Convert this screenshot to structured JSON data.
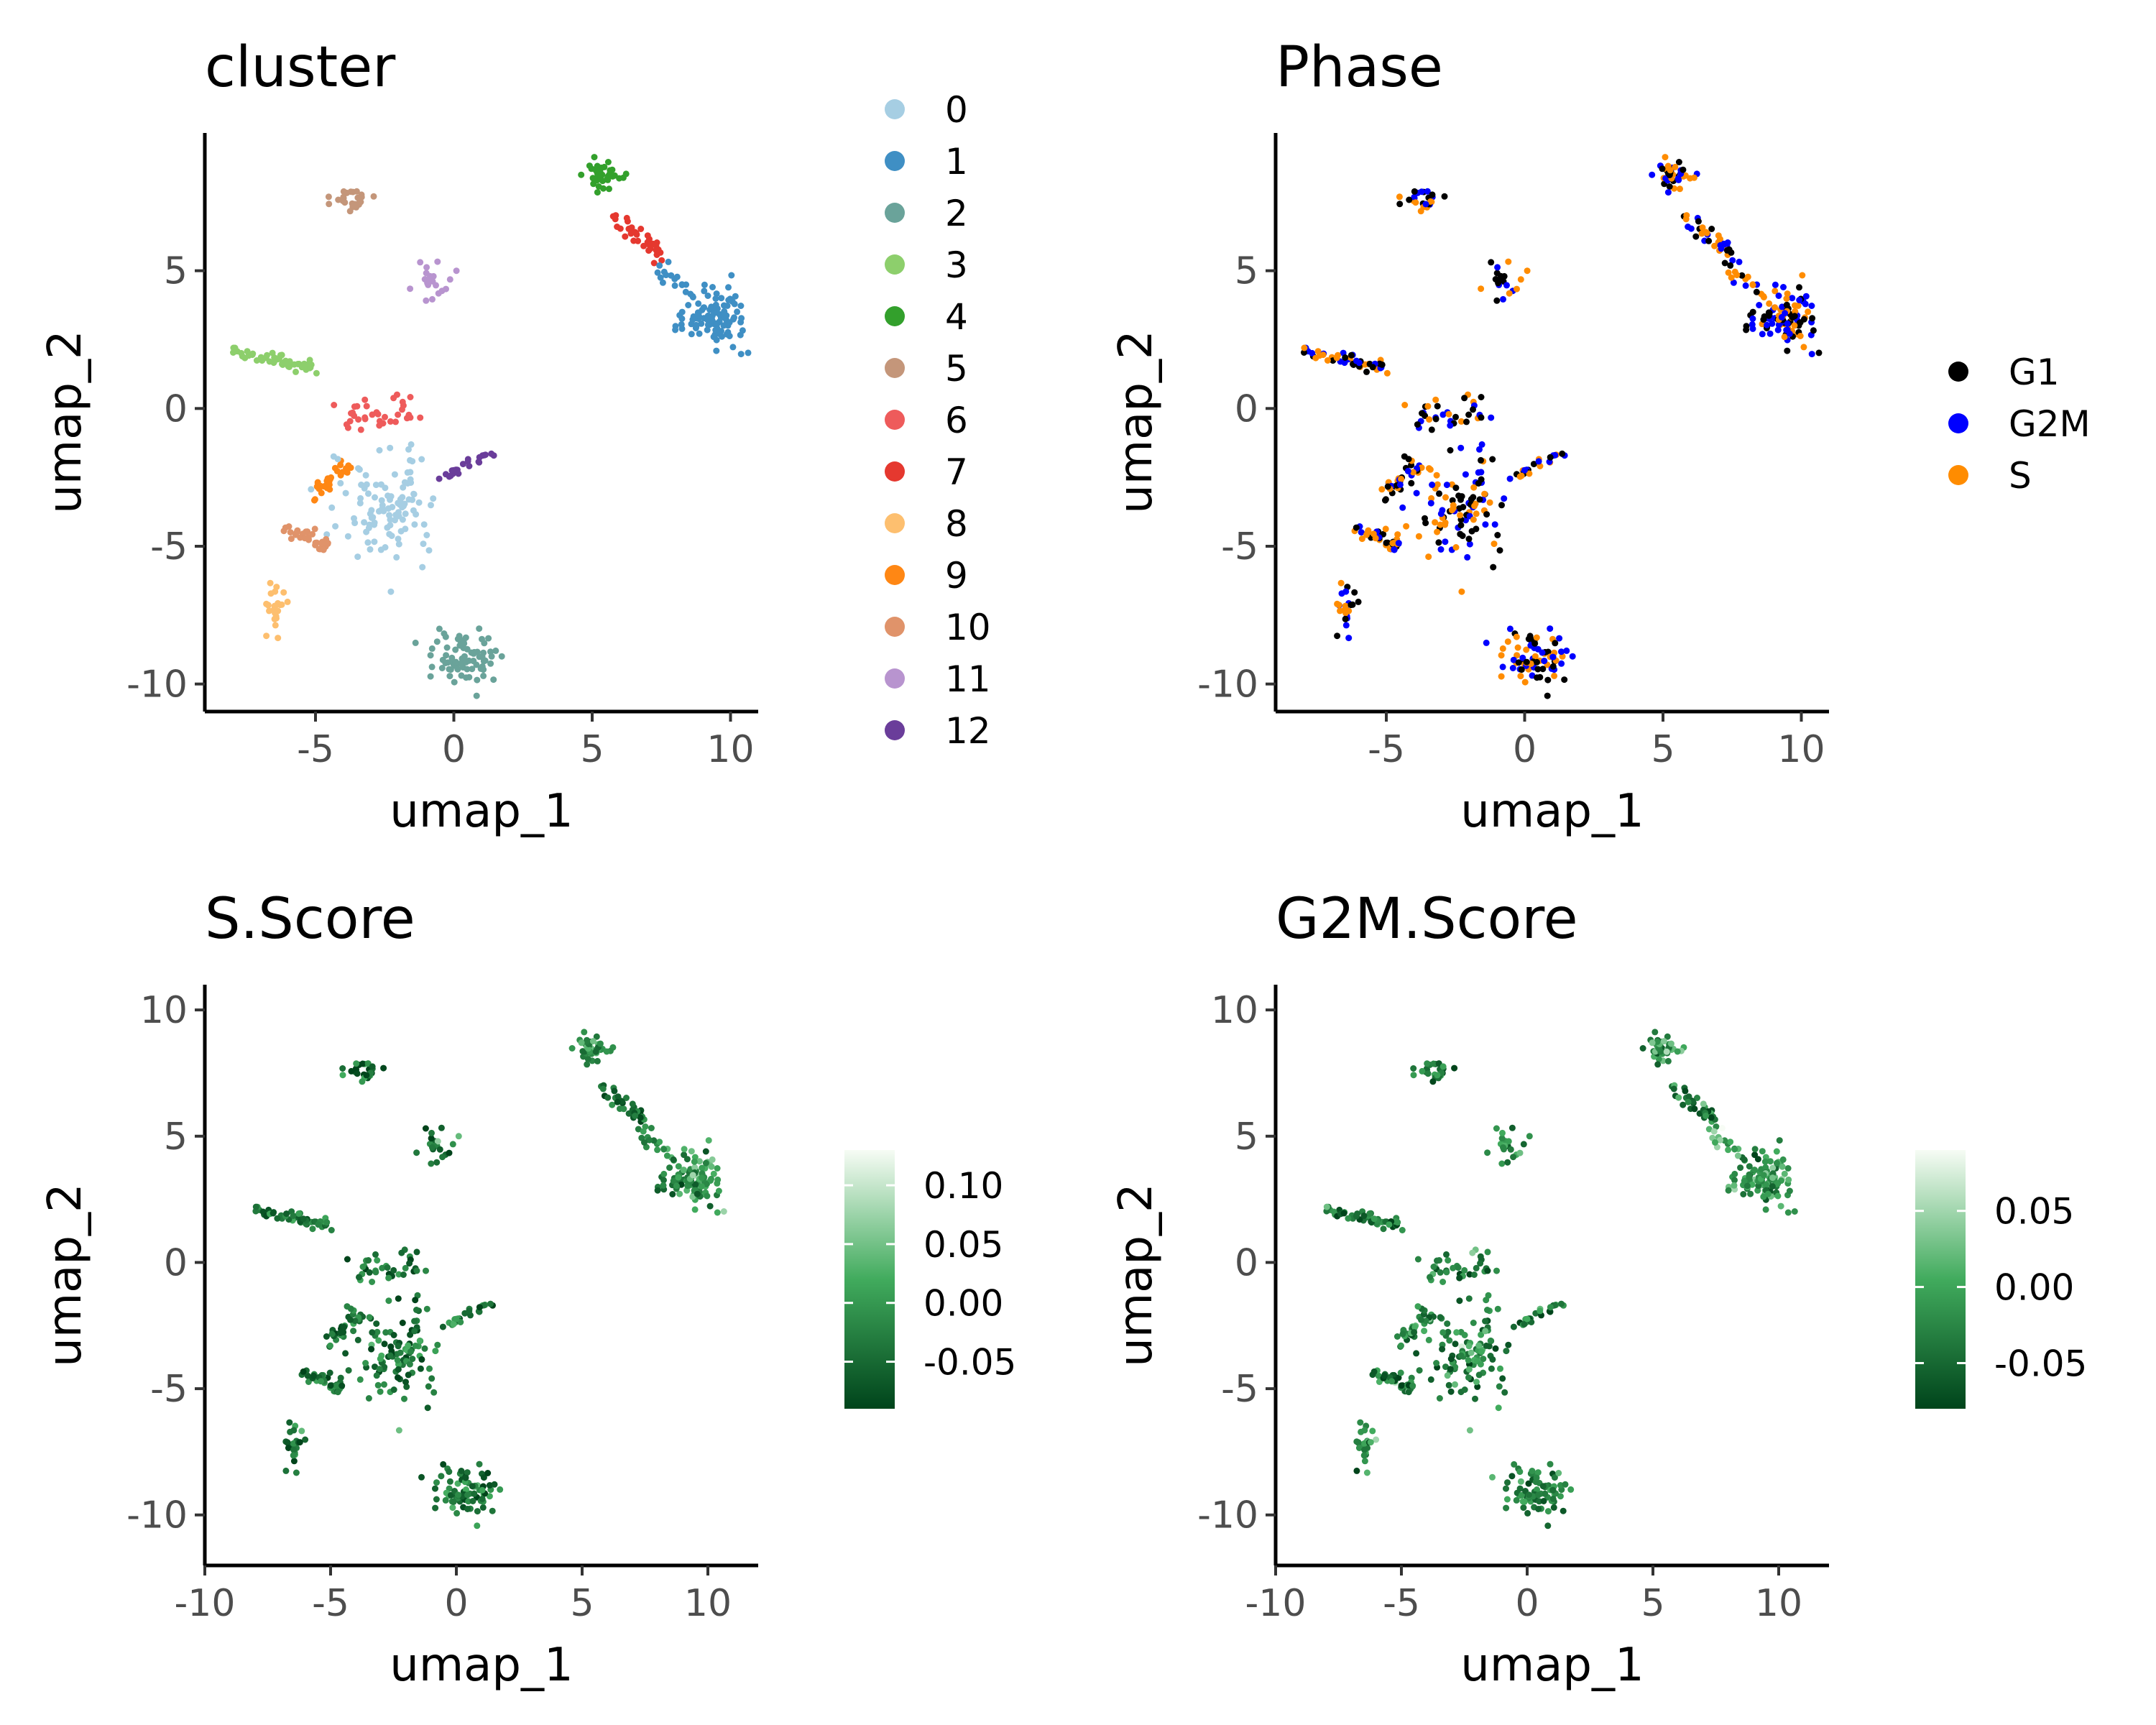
{
  "chart_data": [
    {
      "title": "cluster",
      "type": "scatter",
      "xlabel": "umap_1",
      "ylabel": "umap_2",
      "xlim": [
        -9,
        11
      ],
      "ylim": [
        -11,
        10
      ],
      "xticks": [
        -5,
        0,
        5,
        10
      ],
      "yticks": [
        -10,
        -5,
        0,
        5
      ],
      "grid": false,
      "legend_position": "right",
      "color_by": "cluster",
      "legend": [
        {
          "label": "0",
          "color": "#a6cee3"
        },
        {
          "label": "1",
          "color": "#3f8fc4"
        },
        {
          "label": "2",
          "color": "#6aa39a"
        },
        {
          "label": "3",
          "color": "#8dcf6c"
        },
        {
          "label": "4",
          "color": "#33a02c"
        },
        {
          "label": "5",
          "color": "#c4967a"
        },
        {
          "label": "6",
          "color": "#ee5b5b"
        },
        {
          "label": "7",
          "color": "#e5382f"
        },
        {
          "label": "8",
          "color": "#fdbf6f"
        },
        {
          "label": "9",
          "color": "#ff8714"
        },
        {
          "label": "10",
          "color": "#e0936a"
        },
        {
          "label": "11",
          "color": "#b894cf"
        },
        {
          "label": "12",
          "color": "#6a3d9a"
        }
      ]
    },
    {
      "title": "Phase",
      "type": "scatter",
      "xlabel": "umap_1",
      "ylabel": "umap_2",
      "xlim": [
        -9,
        11
      ],
      "ylim": [
        -11,
        10
      ],
      "xticks": [
        -5,
        0,
        5,
        10
      ],
      "yticks": [
        -10,
        -5,
        0,
        5
      ],
      "grid": false,
      "legend_position": "right",
      "color_by": "phase",
      "legend": [
        {
          "label": "G1",
          "color": "#000000"
        },
        {
          "label": "G2M",
          "color": "#0000ff"
        },
        {
          "label": "S",
          "color": "#ff8c00"
        }
      ]
    },
    {
      "title": "S.Score",
      "type": "scatter",
      "xlabel": "umap_1",
      "ylabel": "umap_2",
      "xlim": [
        -10,
        12
      ],
      "ylim": [
        -12,
        11
      ],
      "xticks": [
        -10,
        -5,
        0,
        5,
        10
      ],
      "yticks": [
        -10,
        -5,
        0,
        5,
        10
      ],
      "grid": false,
      "legend_position": "right",
      "color_by": "s_score",
      "colorbar": {
        "min": -0.09,
        "max": 0.13,
        "ticks": [
          0.1,
          0.05,
          0.0,
          -0.05
        ],
        "tick_labels": [
          "0.10",
          "0.05",
          "0.00",
          "-0.05"
        ],
        "low_color": "#00441b",
        "mid_color": "#41ab5d",
        "high_color": "#f7fcf5"
      }
    },
    {
      "title": "G2M.Score",
      "type": "scatter",
      "xlabel": "umap_1",
      "ylabel": "umap_2",
      "xlim": [
        -10,
        12
      ],
      "ylim": [
        -12,
        11
      ],
      "xticks": [
        -10,
        -5,
        0,
        5,
        10
      ],
      "yticks": [
        -10,
        -5,
        0,
        5,
        10
      ],
      "grid": false,
      "legend_position": "right",
      "color_by": "g2m_score",
      "colorbar": {
        "min": -0.08,
        "max": 0.09,
        "ticks": [
          0.05,
          0.0,
          -0.05
        ],
        "tick_labels": [
          "0.05",
          "0.00",
          "-0.05"
        ],
        "low_color": "#00441b",
        "mid_color": "#41ab5d",
        "high_color": "#f7fcf5"
      }
    }
  ],
  "cell_groups": [
    {
      "cluster": "4",
      "shape": "blob",
      "center": [
        5.3,
        8.5
      ],
      "spread": [
        0.35,
        0.25
      ],
      "count": 45
    },
    {
      "cluster": "7",
      "shape": "line",
      "from": [
        5.8,
        7.0
      ],
      "to": [
        7.5,
        5.5
      ],
      "width": 0.25,
      "count": 35
    },
    {
      "cluster": "1",
      "shape": "line",
      "from": [
        7.6,
        5.0
      ],
      "to": [
        8.6,
        4.2
      ],
      "width": 0.25,
      "count": 15
    },
    {
      "cluster": "1",
      "shape": "blob",
      "center": [
        9.4,
        3.3
      ],
      "spread": [
        0.55,
        0.5
      ],
      "count": 110
    },
    {
      "cluster": "5",
      "shape": "blob",
      "center": [
        -3.7,
        7.5
      ],
      "spread": [
        0.45,
        0.25
      ],
      "count": 25
    },
    {
      "cluster": "11",
      "shape": "blob",
      "center": [
        -0.8,
        4.6
      ],
      "spread": [
        0.35,
        0.35
      ],
      "count": 20
    },
    {
      "cluster": "3",
      "shape": "line",
      "from": [
        -8.0,
        2.1
      ],
      "to": [
        -5.1,
        1.5
      ],
      "width": 0.2,
      "count": 50
    },
    {
      "cluster": "6",
      "shape": "blob",
      "center": [
        -2.5,
        -0.2
      ],
      "spread": [
        0.7,
        0.3
      ],
      "count": 30
    },
    {
      "cluster": "6",
      "shape": "line",
      "from": [
        -3.9,
        -1.0
      ],
      "to": [
        -3.5,
        0.3
      ],
      "width": 0.1,
      "count": 5
    },
    {
      "cluster": "12",
      "shape": "line",
      "from": [
        -0.5,
        -2.6
      ],
      "to": [
        1.3,
        -1.6
      ],
      "width": 0.15,
      "count": 25
    },
    {
      "cluster": "9",
      "shape": "line",
      "from": [
        -5.2,
        -3.2
      ],
      "to": [
        -3.9,
        -2.1
      ],
      "width": 0.25,
      "count": 30
    },
    {
      "cluster": "0",
      "shape": "blob",
      "center": [
        -2.5,
        -3.8
      ],
      "spread": [
        0.8,
        0.95
      ],
      "count": 95
    },
    {
      "cluster": "0",
      "shape": "line",
      "from": [
        -1.8,
        -3.6
      ],
      "to": [
        -1.5,
        -1.2
      ],
      "width": 0.2,
      "count": 12
    },
    {
      "cluster": "10",
      "shape": "line",
      "from": [
        -6.1,
        -4.3
      ],
      "to": [
        -4.6,
        -5.0
      ],
      "width": 0.25,
      "count": 35
    },
    {
      "cluster": "8",
      "shape": "blob",
      "center": [
        -6.4,
        -7.3
      ],
      "spread": [
        0.2,
        0.4
      ],
      "count": 25
    },
    {
      "cluster": "2",
      "shape": "blob",
      "center": [
        0.5,
        -9.1
      ],
      "spread": [
        0.6,
        0.5
      ],
      "count": 80
    }
  ]
}
